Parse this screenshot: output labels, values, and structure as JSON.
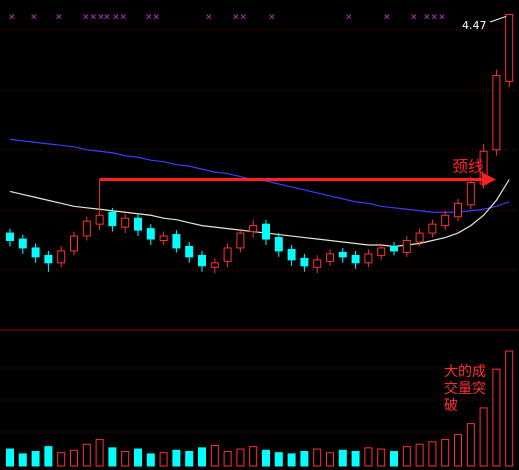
{
  "chart_data": {
    "type": "candlestick",
    "price_label": "4.47",
    "neckline": 3.36,
    "neckline_label": "颈线",
    "note_lines": [
      "大的成",
      "交量突",
      "破"
    ],
    "ylim": [
      2.55,
      4.5
    ],
    "volume_ylim": [
      0,
      100
    ],
    "up_color": "#ff3232",
    "down_color": "#00ffff",
    "open": [
      3.0,
      2.96,
      2.9,
      2.85,
      2.8,
      2.88,
      2.98,
      3.06,
      3.14,
      3.04,
      3.1,
      3.03,
      2.95,
      2.99,
      2.91,
      2.85,
      2.77,
      2.81,
      2.9,
      3.01,
      3.06,
      2.97,
      2.89,
      2.83,
      2.77,
      2.81,
      2.87,
      2.85,
      2.8,
      2.85,
      2.91,
      2.87,
      2.94,
      3.0,
      3.05,
      3.11,
      3.19,
      3.33,
      3.56,
      4.02
    ],
    "high": [
      3.03,
      2.99,
      2.93,
      2.88,
      2.91,
      3.01,
      3.11,
      3.36,
      3.17,
      3.13,
      3.13,
      3.06,
      3.01,
      3.02,
      2.94,
      2.88,
      2.83,
      2.93,
      3.03,
      3.09,
      3.09,
      3.0,
      2.92,
      2.86,
      2.85,
      2.89,
      2.9,
      2.88,
      2.89,
      2.93,
      2.94,
      2.98,
      3.03,
      3.09,
      3.15,
      3.23,
      3.38,
      3.6,
      4.1,
      4.47
    ],
    "low": [
      2.91,
      2.86,
      2.8,
      2.74,
      2.77,
      2.85,
      2.95,
      3.02,
      3.01,
      3.0,
      2.98,
      2.92,
      2.92,
      2.87,
      2.8,
      2.74,
      2.73,
      2.77,
      2.87,
      2.97,
      2.92,
      2.84,
      2.78,
      2.74,
      2.73,
      2.78,
      2.8,
      2.76,
      2.77,
      2.82,
      2.85,
      2.84,
      2.91,
      2.97,
      3.02,
      3.08,
      3.16,
      3.3,
      3.52,
      3.98
    ],
    "close": [
      2.95,
      2.9,
      2.84,
      2.8,
      2.88,
      2.98,
      3.08,
      3.12,
      3.05,
      3.1,
      3.02,
      2.96,
      2.98,
      2.9,
      2.84,
      2.78,
      2.8,
      2.9,
      3.0,
      3.05,
      2.96,
      2.88,
      2.82,
      2.78,
      2.82,
      2.86,
      2.84,
      2.8,
      2.86,
      2.9,
      2.88,
      2.95,
      3.0,
      3.06,
      3.12,
      3.2,
      3.34,
      3.55,
      4.06,
      4.47
    ],
    "series": [
      {
        "color": "#3c3cff",
        "values": [
          3.63,
          3.62,
          3.61,
          3.6,
          3.59,
          3.58,
          3.56,
          3.55,
          3.54,
          3.52,
          3.51,
          3.49,
          3.48,
          3.46,
          3.45,
          3.43,
          3.41,
          3.4,
          3.38,
          3.36,
          3.35,
          3.33,
          3.31,
          3.29,
          3.27,
          3.25,
          3.23,
          3.21,
          3.2,
          3.18,
          3.17,
          3.16,
          3.15,
          3.14,
          3.14,
          3.14,
          3.15,
          3.16,
          3.18,
          3.21
        ]
      },
      {
        "color": "#e8e8d0",
        "values": [
          3.28,
          3.26,
          3.24,
          3.22,
          3.2,
          3.18,
          3.17,
          3.16,
          3.15,
          3.14,
          3.13,
          3.12,
          3.1,
          3.09,
          3.07,
          3.05,
          3.04,
          3.03,
          3.02,
          3.01,
          3.0,
          2.99,
          2.98,
          2.97,
          2.96,
          2.95,
          2.94,
          2.93,
          2.92,
          2.92,
          2.91,
          2.92,
          2.93,
          2.95,
          2.97,
          3.0,
          3.05,
          3.12,
          3.22,
          3.36
        ]
      }
    ],
    "volume": [
      14,
      10,
      12,
      16,
      11,
      13,
      18,
      22,
      15,
      12,
      14,
      10,
      11,
      13,
      12,
      15,
      17,
      12,
      14,
      16,
      13,
      11,
      10,
      12,
      14,
      11,
      13,
      12,
      15,
      14,
      12,
      16,
      18,
      20,
      22,
      26,
      35,
      48,
      80,
      95
    ]
  }
}
